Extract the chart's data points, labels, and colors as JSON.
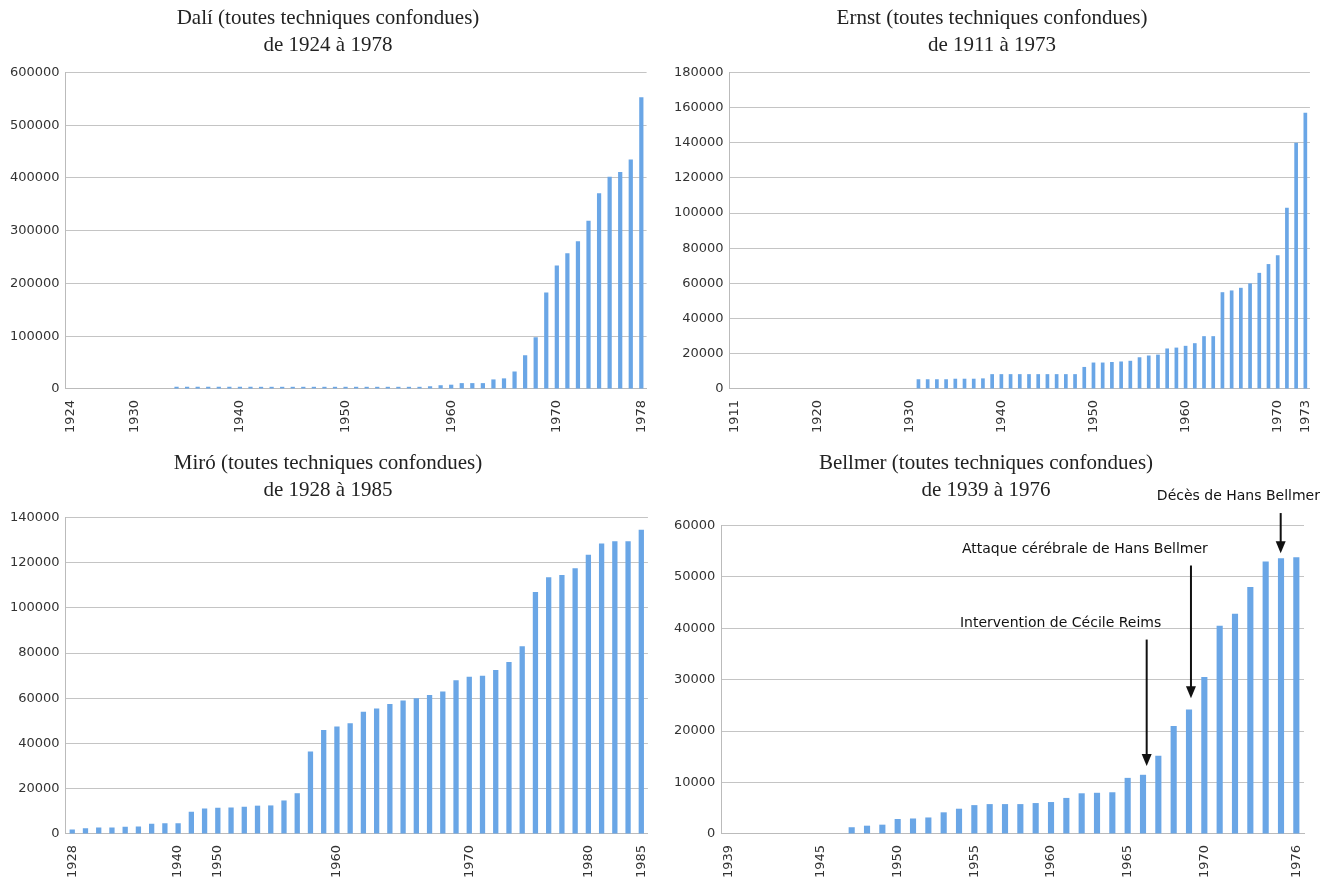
{
  "chart_data": [
    {
      "type": "bar",
      "title": "Dalí (toutes techniques confondues)",
      "subtitle": "de 1924 à 1978",
      "color": "#6aa6e6",
      "grid": "y",
      "ylim": [
        0,
        600000
      ],
      "yticks": [
        0,
        100000,
        200000,
        300000,
        400000,
        500000,
        600000
      ],
      "categories": [
        "1924",
        null,
        null,
        null,
        null,
        null,
        "1930",
        null,
        null,
        null,
        null,
        null,
        null,
        null,
        null,
        null,
        "1940",
        null,
        null,
        null,
        null,
        null,
        null,
        null,
        null,
        null,
        "1950",
        null,
        null,
        null,
        null,
        null,
        null,
        null,
        null,
        null,
        "1960",
        null,
        null,
        null,
        null,
        null,
        null,
        null,
        null,
        null,
        "1970",
        null,
        null,
        null,
        null,
        null,
        null,
        null,
        "1978"
      ],
      "values": [
        0,
        0,
        0,
        0,
        0,
        0,
        0,
        0,
        0,
        0,
        4000,
        4000,
        4000,
        4000,
        4000,
        4000,
        4000,
        4000,
        4000,
        4000,
        4000,
        4000,
        4000,
        4000,
        4000,
        4000,
        4000,
        4000,
        4000,
        4000,
        4000,
        4000,
        4000,
        4000,
        5000,
        7000,
        8000,
        11000,
        11000,
        11000,
        18000,
        20000,
        33000,
        64000,
        98000,
        183000,
        234000,
        257000,
        280000,
        319000,
        371000,
        402000,
        411000,
        435000,
        553000
      ]
    },
    {
      "type": "bar",
      "title": "Ernst (toutes techniques confondues)",
      "subtitle": "de 1911 à 1973",
      "color": "#6aa6e6",
      "grid": "y",
      "ylim": [
        0,
        180000
      ],
      "yticks": [
        0,
        20000,
        40000,
        60000,
        80000,
        100000,
        120000,
        140000,
        160000,
        180000
      ],
      "categories": [
        "1911",
        null,
        null,
        null,
        null,
        null,
        null,
        null,
        null,
        "1920",
        null,
        null,
        null,
        null,
        null,
        null,
        null,
        null,
        null,
        "1930",
        null,
        null,
        null,
        null,
        null,
        null,
        null,
        null,
        null,
        "1940",
        null,
        null,
        null,
        null,
        null,
        null,
        null,
        null,
        null,
        "1950",
        null,
        null,
        null,
        null,
        null,
        null,
        null,
        null,
        null,
        "1960",
        null,
        null,
        null,
        null,
        null,
        null,
        null,
        null,
        null,
        "1970",
        null,
        null,
        "1973"
      ],
      "values": [
        0,
        0,
        0,
        0,
        0,
        0,
        0,
        0,
        0,
        0,
        0,
        0,
        0,
        0,
        0,
        0,
        0,
        0,
        0,
        0,
        5500,
        5500,
        5500,
        5500,
        5800,
        5800,
        5800,
        6000,
        8400,
        8400,
        8400,
        8400,
        8400,
        8400,
        8400,
        8400,
        8400,
        8400,
        12500,
        15000,
        15000,
        15300,
        15600,
        16000,
        18000,
        19000,
        19500,
        23000,
        23500,
        24500,
        26000,
        30000,
        30000,
        55000,
        56000,
        57500,
        60000,
        66000,
        71000,
        76000,
        103000,
        140000,
        157000
      ]
    },
    {
      "type": "bar",
      "title": "Miró (toutes techniques confondues)",
      "subtitle": "de 1928 à 1985",
      "color": "#6aa6e6",
      "grid": "y",
      "ylim": [
        0,
        140000
      ],
      "yticks": [
        0,
        20000,
        40000,
        60000,
        80000,
        100000,
        120000,
        140000
      ],
      "categories": [
        "1928",
        null,
        null,
        null,
        null,
        null,
        null,
        null,
        "1940",
        null,
        null,
        "1950",
        null,
        null,
        null,
        null,
        null,
        null,
        null,
        null,
        "1960",
        null,
        null,
        null,
        null,
        null,
        null,
        null,
        null,
        null,
        "1970",
        null,
        null,
        null,
        null,
        null,
        null,
        null,
        null,
        "1980",
        null,
        null,
        null,
        "1985"
      ],
      "values": [
        2000,
        2500,
        2800,
        2800,
        3200,
        3300,
        4500,
        4700,
        4700,
        9800,
        11200,
        11600,
        11700,
        12000,
        12500,
        12600,
        14800,
        18000,
        36500,
        46000,
        47500,
        49000,
        54000,
        55500,
        57500,
        59000,
        60000,
        61500,
        63000,
        68000,
        69500,
        70000,
        72500,
        76000,
        83000,
        107000,
        113500,
        114500,
        117500,
        123500,
        128500,
        129500,
        129500,
        134500
      ]
    },
    {
      "type": "bar",
      "title": "Bellmer (toutes techniques confondues)",
      "subtitle": "de 1939 à 1976",
      "color": "#6aa6e6",
      "grid": "y",
      "ylim": [
        0,
        60000
      ],
      "yticks": [
        0,
        10000,
        20000,
        30000,
        40000,
        50000,
        60000
      ],
      "categories": [
        "1939",
        null,
        null,
        null,
        null,
        null,
        "1945",
        null,
        null,
        null,
        null,
        "1950",
        null,
        null,
        null,
        null,
        "1955",
        null,
        null,
        null,
        null,
        "1960",
        null,
        null,
        null,
        null,
        "1965",
        null,
        null,
        null,
        null,
        "1970",
        null,
        null,
        null,
        null,
        null,
        "1976"
      ],
      "values": [
        0,
        0,
        0,
        0,
        0,
        0,
        0,
        0,
        1300,
        1600,
        1800,
        2900,
        3000,
        3200,
        4200,
        4900,
        5600,
        5800,
        5800,
        5800,
        6000,
        6200,
        7000,
        7900,
        8000,
        8100,
        10900,
        11500,
        15200,
        21000,
        24200,
        30500,
        40500,
        42800,
        48000,
        53000,
        53600,
        53800
      ],
      "annotations": [
        "Intervention de Cécile Reims",
        "Attaque cérébrale de Hans Bellmer",
        "Décès de Hans Bellmer"
      ]
    }
  ]
}
